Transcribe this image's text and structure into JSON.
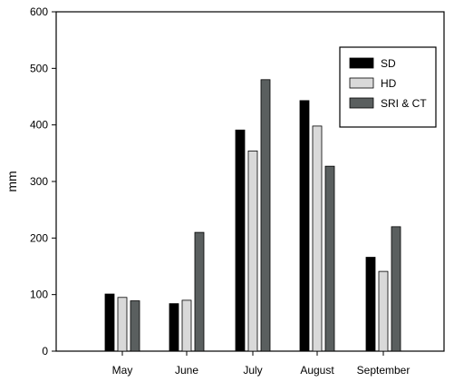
{
  "chart_data": {
    "type": "bar",
    "title": "",
    "xlabel": "",
    "ylabel": "mm",
    "ylim": [
      0,
      600
    ],
    "yticks": [
      0,
      100,
      200,
      300,
      400,
      500,
      600
    ],
    "categories": [
      "May",
      "June",
      "July",
      "August",
      "September"
    ],
    "series": [
      {
        "name": "SD",
        "color": "#000000",
        "values": [
          101,
          84,
          391,
          443,
          166
        ]
      },
      {
        "name": "HD",
        "color": "#d9d9d9",
        "values": [
          95,
          90,
          354,
          398,
          141
        ]
      },
      {
        "name": "SRI & CT",
        "color": "#5a5f5f",
        "values": [
          89,
          210,
          480,
          327,
          220
        ]
      }
    ],
    "grid": false,
    "legend": {
      "position": "top-right"
    }
  }
}
